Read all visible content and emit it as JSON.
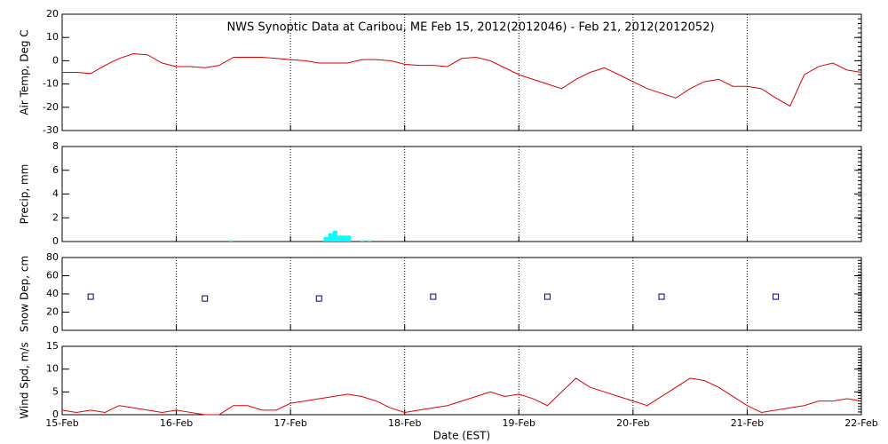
{
  "chart_data": [
    {
      "type": "line",
      "title": "NWS Synoptic Data at Caribou, ME   Feb 15, 2012(2012046) - Feb 21, 2012(2012052)",
      "ylabel": "Air Temp, Deg C",
      "xlim": [
        0,
        7
      ],
      "ylim": [
        -30,
        20
      ],
      "yticks": [
        -30,
        -20,
        -10,
        0,
        10,
        20
      ],
      "series": [
        {
          "name": "Air Temp",
          "color": "#e00000",
          "x": [
            0,
            0.125,
            0.25,
            0.375,
            0.5,
            0.625,
            0.75,
            0.875,
            1,
            1.125,
            1.25,
            1.375,
            1.5,
            1.625,
            1.75,
            1.875,
            2,
            2.125,
            2.25,
            2.375,
            2.5,
            2.625,
            2.75,
            2.875,
            3,
            3.125,
            3.25,
            3.375,
            3.5,
            3.625,
            3.75,
            3.875,
            4,
            4.125,
            4.25,
            4.375,
            4.5,
            4.625,
            4.75,
            4.875,
            5,
            5.125,
            5.25,
            5.375,
            5.5,
            5.625,
            5.75,
            5.875,
            6,
            6.125,
            6.25,
            6.375,
            6.5,
            6.625,
            6.75,
            6.875,
            7
          ],
          "values": [
            -5,
            -5,
            -5.5,
            -2,
            1,
            3,
            2.5,
            -1,
            -2.5,
            -2.5,
            -3,
            -2,
            1.5,
            1.5,
            1.5,
            1,
            0.5,
            0,
            -1,
            -1,
            -1,
            0.5,
            0.5,
            0,
            -1.5,
            -2,
            -2,
            -2.5,
            1,
            1.5,
            0,
            -3,
            -6,
            -8,
            -10,
            -12,
            -8,
            -5,
            -3,
            -6,
            -9,
            -12,
            -14,
            -16,
            -12,
            -9,
            -8,
            -11,
            -11,
            -12,
            -16,
            -19.5,
            -6,
            -2.5,
            -1,
            -4,
            -5
          ]
        }
      ]
    },
    {
      "type": "bar",
      "ylabel": "Precip, mm",
      "xlim": [
        0,
        7
      ],
      "ylim": [
        0,
        8
      ],
      "yticks": [
        0,
        2,
        4,
        6,
        8
      ],
      "series": [
        {
          "name": "Precip",
          "color": "#00ffff",
          "x": [
            1.48,
            2.31,
            2.35,
            2.39,
            2.43,
            2.47,
            2.51,
            2.63,
            2.69
          ],
          "values": [
            0.1,
            0.4,
            0.7,
            0.9,
            0.5,
            0.5,
            0.5,
            0.1,
            0.1
          ]
        }
      ]
    },
    {
      "type": "scatter",
      "ylabel": "Snow Dep, cm",
      "xlim": [
        0,
        7
      ],
      "ylim": [
        0,
        80
      ],
      "yticks": [
        0,
        20,
        40,
        60,
        80
      ],
      "series": [
        {
          "name": "Snow Depth",
          "color": "#000080",
          "x": [
            0.25,
            1.25,
            2.25,
            3.25,
            4.25,
            5.25,
            6.25
          ],
          "values": [
            37,
            35,
            35,
            37,
            37,
            37,
            37
          ]
        }
      ]
    },
    {
      "type": "line",
      "ylabel": "Wind Spd, m/s",
      "xlabel": "Date (EST)",
      "xlim": [
        0,
        7
      ],
      "ylim": [
        0,
        15
      ],
      "yticks": [
        0,
        5,
        10,
        15
      ],
      "xticks": [
        {
          "value": 0,
          "label": "15-Feb"
        },
        {
          "value": 1,
          "label": "16-Feb"
        },
        {
          "value": 2,
          "label": "17-Feb"
        },
        {
          "value": 3,
          "label": "18-Feb"
        },
        {
          "value": 4,
          "label": "19-Feb"
        },
        {
          "value": 5,
          "label": "20-Feb"
        },
        {
          "value": 6,
          "label": "21-Feb"
        },
        {
          "value": 7,
          "label": "22-Feb"
        }
      ],
      "series": [
        {
          "name": "Wind Speed",
          "color": "#e00000",
          "x": [
            0,
            0.125,
            0.25,
            0.375,
            0.5,
            0.625,
            0.75,
            0.875,
            1,
            1.125,
            1.25,
            1.375,
            1.5,
            1.625,
            1.75,
            1.875,
            2,
            2.125,
            2.25,
            2.375,
            2.5,
            2.625,
            2.75,
            2.875,
            3,
            3.125,
            3.25,
            3.375,
            3.5,
            3.625,
            3.75,
            3.875,
            4,
            4.125,
            4.25,
            4.375,
            4.5,
            4.625,
            4.75,
            4.875,
            5,
            5.125,
            5.25,
            5.375,
            5.5,
            5.625,
            5.75,
            5.875,
            6,
            6.125,
            6.25,
            6.375,
            6.5,
            6.625,
            6.75,
            6.875,
            7
          ],
          "values": [
            1,
            0.5,
            1,
            0.5,
            2,
            1.5,
            1,
            0.5,
            1,
            0.5,
            0,
            0,
            2,
            2,
            1,
            1,
            2.5,
            3,
            3.5,
            4,
            4.5,
            4,
            3,
            1.5,
            0.5,
            1,
            1.5,
            2,
            3,
            4,
            5,
            4,
            4.5,
            3.5,
            2,
            5,
            8,
            6,
            5,
            4,
            3,
            2,
            4,
            6,
            8,
            7.5,
            6,
            4,
            2,
            0.5,
            1,
            1.5,
            2,
            3,
            3,
            3.5,
            3
          ]
        }
      ]
    }
  ]
}
